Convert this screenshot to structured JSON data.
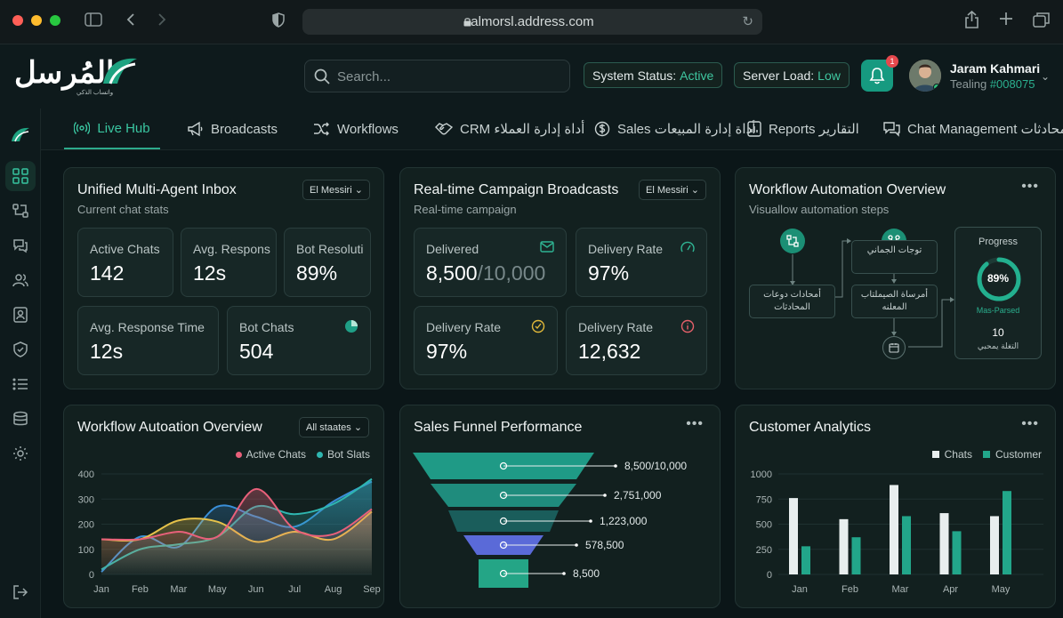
{
  "browser": {
    "url": "almorsl.address.com"
  },
  "brand": {
    "logo_text": "المُرسل",
    "logo_subtext": "واتساب الذكي",
    "accent": "#2bb08f"
  },
  "header": {
    "search_placeholder": "Search...",
    "system_status_label": "System Status:",
    "system_status_value": "Active",
    "server_load_label": "Server Load:",
    "server_load_value": "Low",
    "notification_count": "1",
    "user_name": "Jaram Kahmari",
    "user_role": "Tealing",
    "user_id": "#008075"
  },
  "tabs": [
    {
      "label": "Live Hub"
    },
    {
      "label": "Broadcasts"
    },
    {
      "label": "Workflows"
    },
    {
      "label": "CRM أداة إدارة العملاء"
    },
    {
      "label": "Sales أداة إدارة المبيعات"
    },
    {
      "label": "Reports التقارير"
    },
    {
      "label": "Chat Management المحادثات"
    }
  ],
  "inbox": {
    "title": "Unified Multi-Agent Inbox",
    "subtitle": "Current chat stats",
    "dropdown": "El Messiri",
    "stats": [
      {
        "label": "Active Chats",
        "value": "142"
      },
      {
        "label": "Avg. Respons",
        "value": "12s"
      },
      {
        "label": "Bot Resoluti",
        "value": "89%"
      },
      {
        "label": "Avg. Response Time",
        "value": "12s"
      },
      {
        "label": "Bot Chats",
        "value": "504"
      }
    ]
  },
  "campaign": {
    "title": "Real-time Campaign Broadcasts",
    "subtitle": "Real-time campaign",
    "dropdown": "El Messiri",
    "stats": [
      {
        "label": "Delivered",
        "value": "8,500",
        "value_total": "/10,000"
      },
      {
        "label": "Delivery Rate",
        "value": "97%"
      },
      {
        "label": "Delivery Rate",
        "value": "97%"
      },
      {
        "label": "Delivery Rate",
        "value": "12,632"
      }
    ]
  },
  "workflow_overview": {
    "title": "Workflow Automation Overview",
    "subtitle": "Visuallow automation steps",
    "box_left": "أمحادات دوعات المحادثات",
    "box_top": "توجات الجماني",
    "box_middle": "أمرساة الصيملتاب المعلنه",
    "progress_label": "Progress",
    "progress_value": "89%",
    "progress_fraction": 0.89,
    "progress_caption": "Mas-Parsed",
    "count_value": "10",
    "count_caption": "التغلة يمحبي"
  },
  "line_chart_card": {
    "title": "Workflow Autoation Overview",
    "dropdown": "All staates"
  },
  "funnel_card": {
    "title": "Sales Funnel Performance"
  },
  "analytics_card": {
    "title": "Customer Analytics"
  },
  "chart_data": [
    {
      "type": "area",
      "title": "Workflow Autoation Overview",
      "categories": [
        "Jan",
        "Feb",
        "Mar",
        "May",
        "Jun",
        "Jul",
        "Aug",
        "Sep"
      ],
      "ylim": [
        0,
        400
      ],
      "yticks": [
        0,
        100,
        200,
        300,
        400
      ],
      "legend_position": "top-right",
      "series": [
        {
          "name": "Active Chats",
          "color": "#e8607a",
          "values": [
            140,
            140,
            170,
            150,
            340,
            180,
            160,
            260
          ]
        },
        {
          "name": "Bot Slats",
          "color": "#2fb6b0",
          "values": [
            20,
            100,
            120,
            150,
            270,
            240,
            280,
            380
          ]
        },
        {
          "name": "",
          "color": "#e6c24a",
          "values": [
            140,
            140,
            215,
            210,
            130,
            170,
            140,
            250
          ]
        },
        {
          "name": "",
          "color": "#3a8fd8",
          "values": [
            10,
            150,
            110,
            270,
            230,
            190,
            290,
            370
          ]
        }
      ]
    },
    {
      "type": "funnel",
      "title": "Sales Funnel Performance",
      "stages": [
        {
          "label": "8,500/10,000",
          "value": 8500,
          "color": "#1f9a86"
        },
        {
          "label": "2,751,000",
          "value": 2751000,
          "color": "#1f8c7d"
        },
        {
          "label": "1,223,000",
          "value": 1223000,
          "color": "#1a5d5b"
        },
        {
          "label": "578,500",
          "value": 578500,
          "color": "#5a6ad8"
        },
        {
          "label": "8,500",
          "value": 8500,
          "color": "#24a586"
        }
      ]
    },
    {
      "type": "bar",
      "title": "Customer Analytics",
      "categories": [
        "Jan",
        "Feb",
        "Mar",
        "Apr",
        "May"
      ],
      "ylim": [
        0,
        1000
      ],
      "yticks": [
        0,
        250,
        500,
        750,
        1000
      ],
      "legend_position": "top-right",
      "series": [
        {
          "name": "Chats",
          "color": "#e8eeee",
          "values": [
            760,
            550,
            890,
            610,
            580
          ]
        },
        {
          "name": "Customer",
          "color": "#22a68a",
          "values": [
            280,
            370,
            580,
            430,
            830
          ]
        }
      ]
    }
  ]
}
